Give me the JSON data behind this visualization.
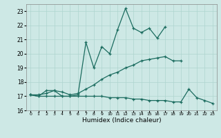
{
  "xlabel": "Humidex (Indice chaleur)",
  "x": [
    0,
    1,
    2,
    3,
    4,
    5,
    6,
    7,
    8,
    9,
    10,
    11,
    12,
    13,
    14,
    15,
    16,
    17,
    18,
    19,
    20,
    21,
    22,
    23
  ],
  "line1": [
    17.1,
    17.0,
    17.4,
    17.4,
    17.0,
    17.0,
    17.1,
    20.8,
    19.0,
    20.5,
    20.0,
    21.7,
    23.2,
    21.8,
    21.5,
    21.8,
    21.1,
    21.9,
    null,
    null,
    null,
    null,
    null,
    null
  ],
  "line2": [
    17.1,
    17.1,
    17.2,
    17.4,
    17.3,
    17.1,
    17.2,
    17.5,
    17.8,
    18.2,
    18.5,
    18.7,
    19.0,
    19.2,
    19.5,
    19.6,
    19.7,
    19.8,
    19.5,
    19.5,
    null,
    null,
    null,
    null
  ],
  "line3": [
    17.1,
    17.0,
    17.0,
    17.0,
    17.0,
    17.0,
    17.0,
    17.0,
    17.0,
    17.0,
    16.9,
    16.9,
    16.9,
    16.8,
    16.8,
    16.7,
    16.7,
    16.7,
    16.6,
    16.6,
    17.5,
    16.9,
    16.7,
    16.5
  ],
  "ylim": [
    16.0,
    23.5
  ],
  "xlim": [
    -0.5,
    23.5
  ],
  "yticks": [
    16,
    17,
    18,
    19,
    20,
    21,
    22,
    23
  ],
  "line_color": "#1a6b5e",
  "bg_color": "#cde8e5",
  "grid_color": "#aed4cf"
}
